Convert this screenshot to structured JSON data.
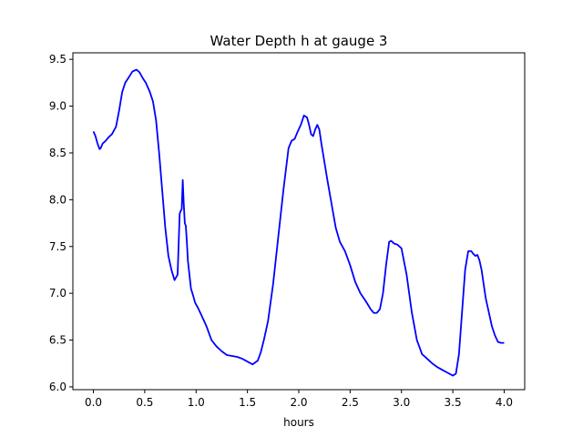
{
  "chart_data": {
    "type": "line",
    "title": "Water Depth h at gauge 3",
    "xlabel": "hours",
    "ylabel": "",
    "xlim": [
      -0.2,
      4.2
    ],
    "ylim": [
      5.97,
      9.57
    ],
    "xticks": [
      0.0,
      0.5,
      1.0,
      1.5,
      2.0,
      2.5,
      3.0,
      3.5,
      4.0
    ],
    "yticks": [
      6.0,
      6.5,
      7.0,
      7.5,
      8.0,
      8.5,
      9.0,
      9.5
    ],
    "xtick_labels": [
      "0.0",
      "0.5",
      "1.0",
      "1.5",
      "2.0",
      "2.5",
      "3.0",
      "3.5",
      "4.0"
    ],
    "ytick_labels": [
      "6.0",
      "6.5",
      "7.0",
      "7.5",
      "8.0",
      "8.5",
      "9.0",
      "9.5"
    ],
    "grid": false,
    "series": [
      {
        "color": "#0000ff",
        "x": [
          0.0,
          0.02,
          0.04,
          0.06,
          0.07,
          0.09,
          0.12,
          0.15,
          0.18,
          0.22,
          0.25,
          0.28,
          0.31,
          0.34,
          0.38,
          0.42,
          0.45,
          0.48,
          0.51,
          0.55,
          0.58,
          0.61,
          0.64,
          0.67,
          0.7,
          0.73,
          0.76,
          0.79,
          0.82,
          0.84,
          0.85,
          0.86,
          0.87,
          0.88,
          0.89,
          0.9,
          0.91,
          0.92,
          0.93,
          0.95,
          0.97,
          0.99,
          1.02,
          1.05,
          1.1,
          1.15,
          1.2,
          1.25,
          1.3,
          1.35,
          1.4,
          1.45,
          1.5,
          1.55,
          1.6,
          1.63,
          1.66,
          1.7,
          1.75,
          1.8,
          1.85,
          1.9,
          1.93,
          1.96,
          1.99,
          2.02,
          2.05,
          2.08,
          2.1,
          2.12,
          2.14,
          2.16,
          2.18,
          2.2,
          2.22,
          2.25,
          2.28,
          2.32,
          2.36,
          2.4,
          2.45,
          2.5,
          2.55,
          2.6,
          2.65,
          2.7,
          2.73,
          2.76,
          2.79,
          2.82,
          2.85,
          2.88,
          2.9,
          2.93,
          2.96,
          3.0,
          3.05,
          3.1,
          3.15,
          3.2,
          3.25,
          3.3,
          3.35,
          3.4,
          3.45,
          3.5,
          3.53,
          3.56,
          3.59,
          3.62,
          3.65,
          3.68,
          3.7,
          3.72,
          3.74,
          3.76,
          3.78,
          3.8,
          3.82,
          3.85,
          3.88,
          3.91,
          3.94,
          3.97,
          4.0
        ],
        "y": [
          8.73,
          8.68,
          8.6,
          8.54,
          8.55,
          8.6,
          8.63,
          8.67,
          8.7,
          8.78,
          8.95,
          9.15,
          9.25,
          9.3,
          9.37,
          9.39,
          9.36,
          9.3,
          9.25,
          9.15,
          9.05,
          8.85,
          8.5,
          8.1,
          7.7,
          7.4,
          7.25,
          7.14,
          7.2,
          7.85,
          7.88,
          7.9,
          8.21,
          7.95,
          7.75,
          7.72,
          7.55,
          7.35,
          7.25,
          7.05,
          6.98,
          6.9,
          6.84,
          6.77,
          6.65,
          6.5,
          6.43,
          6.38,
          6.34,
          6.33,
          6.32,
          6.3,
          6.27,
          6.24,
          6.28,
          6.37,
          6.5,
          6.7,
          7.1,
          7.6,
          8.1,
          8.55,
          8.63,
          8.65,
          8.73,
          8.8,
          8.9,
          8.88,
          8.8,
          8.7,
          8.68,
          8.75,
          8.8,
          8.75,
          8.6,
          8.4,
          8.2,
          7.95,
          7.7,
          7.55,
          7.45,
          7.3,
          7.12,
          7.0,
          6.92,
          6.83,
          6.79,
          6.79,
          6.83,
          7.0,
          7.3,
          7.55,
          7.56,
          7.53,
          7.52,
          7.48,
          7.2,
          6.8,
          6.5,
          6.35,
          6.3,
          6.25,
          6.21,
          6.18,
          6.15,
          6.12,
          6.14,
          6.35,
          6.8,
          7.25,
          7.45,
          7.45,
          7.42,
          7.4,
          7.41,
          7.35,
          7.25,
          7.1,
          6.95,
          6.8,
          6.65,
          6.55,
          6.48,
          6.47,
          6.47
        ]
      }
    ]
  }
}
